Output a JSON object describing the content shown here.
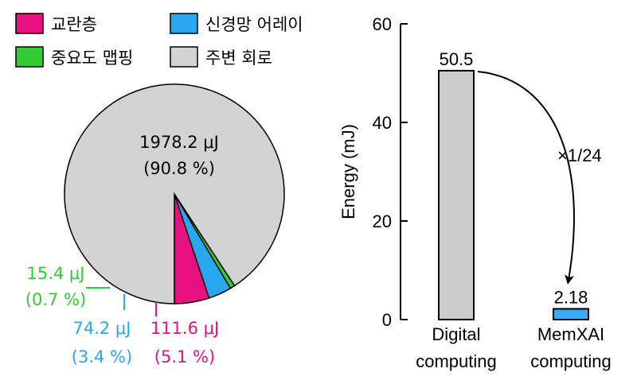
{
  "chart_data": [
    {
      "type": "pie",
      "legend_position": "top",
      "slices": [
        {
          "name": "교란층",
          "value": 111.6,
          "energy_label": "111.6 μJ",
          "percent_label": "(5.1 %)",
          "color": "#e8117f"
        },
        {
          "name": "신경망 어레이",
          "value": 74.2,
          "energy_label": "74.2 μJ",
          "percent_label": "(3.4 %)",
          "color": "#29a8f0"
        },
        {
          "name": "중요도 맵핑",
          "value": 15.4,
          "energy_label": "15.4 μJ",
          "percent_label": "(0.7 %)",
          "color": "#33cc33"
        },
        {
          "name": "주변 회로",
          "value": 1978.2,
          "energy_label": "1978.2 μJ",
          "percent_label": "(90.8 %)",
          "color": "#d3d3d3"
        }
      ],
      "legend_order": [
        "교란층",
        "신경망 어레이",
        "중요도 맵핑",
        "주변 회로"
      ]
    },
    {
      "type": "bar",
      "categories": [
        [
          "Digital",
          "computing"
        ],
        [
          "MemXAI",
          "computing"
        ]
      ],
      "values": [
        50.5,
        2.18
      ],
      "value_labels": [
        "50.5",
        "2.18"
      ],
      "colors": [
        "#cccccc",
        "#3aa9f2"
      ],
      "ylabel": "Energy (mJ)",
      "ylim": [
        0,
        60
      ],
      "yticks": [
        "0",
        "20",
        "40",
        "60"
      ],
      "annotation": "×1/24",
      "grid": false
    }
  ]
}
